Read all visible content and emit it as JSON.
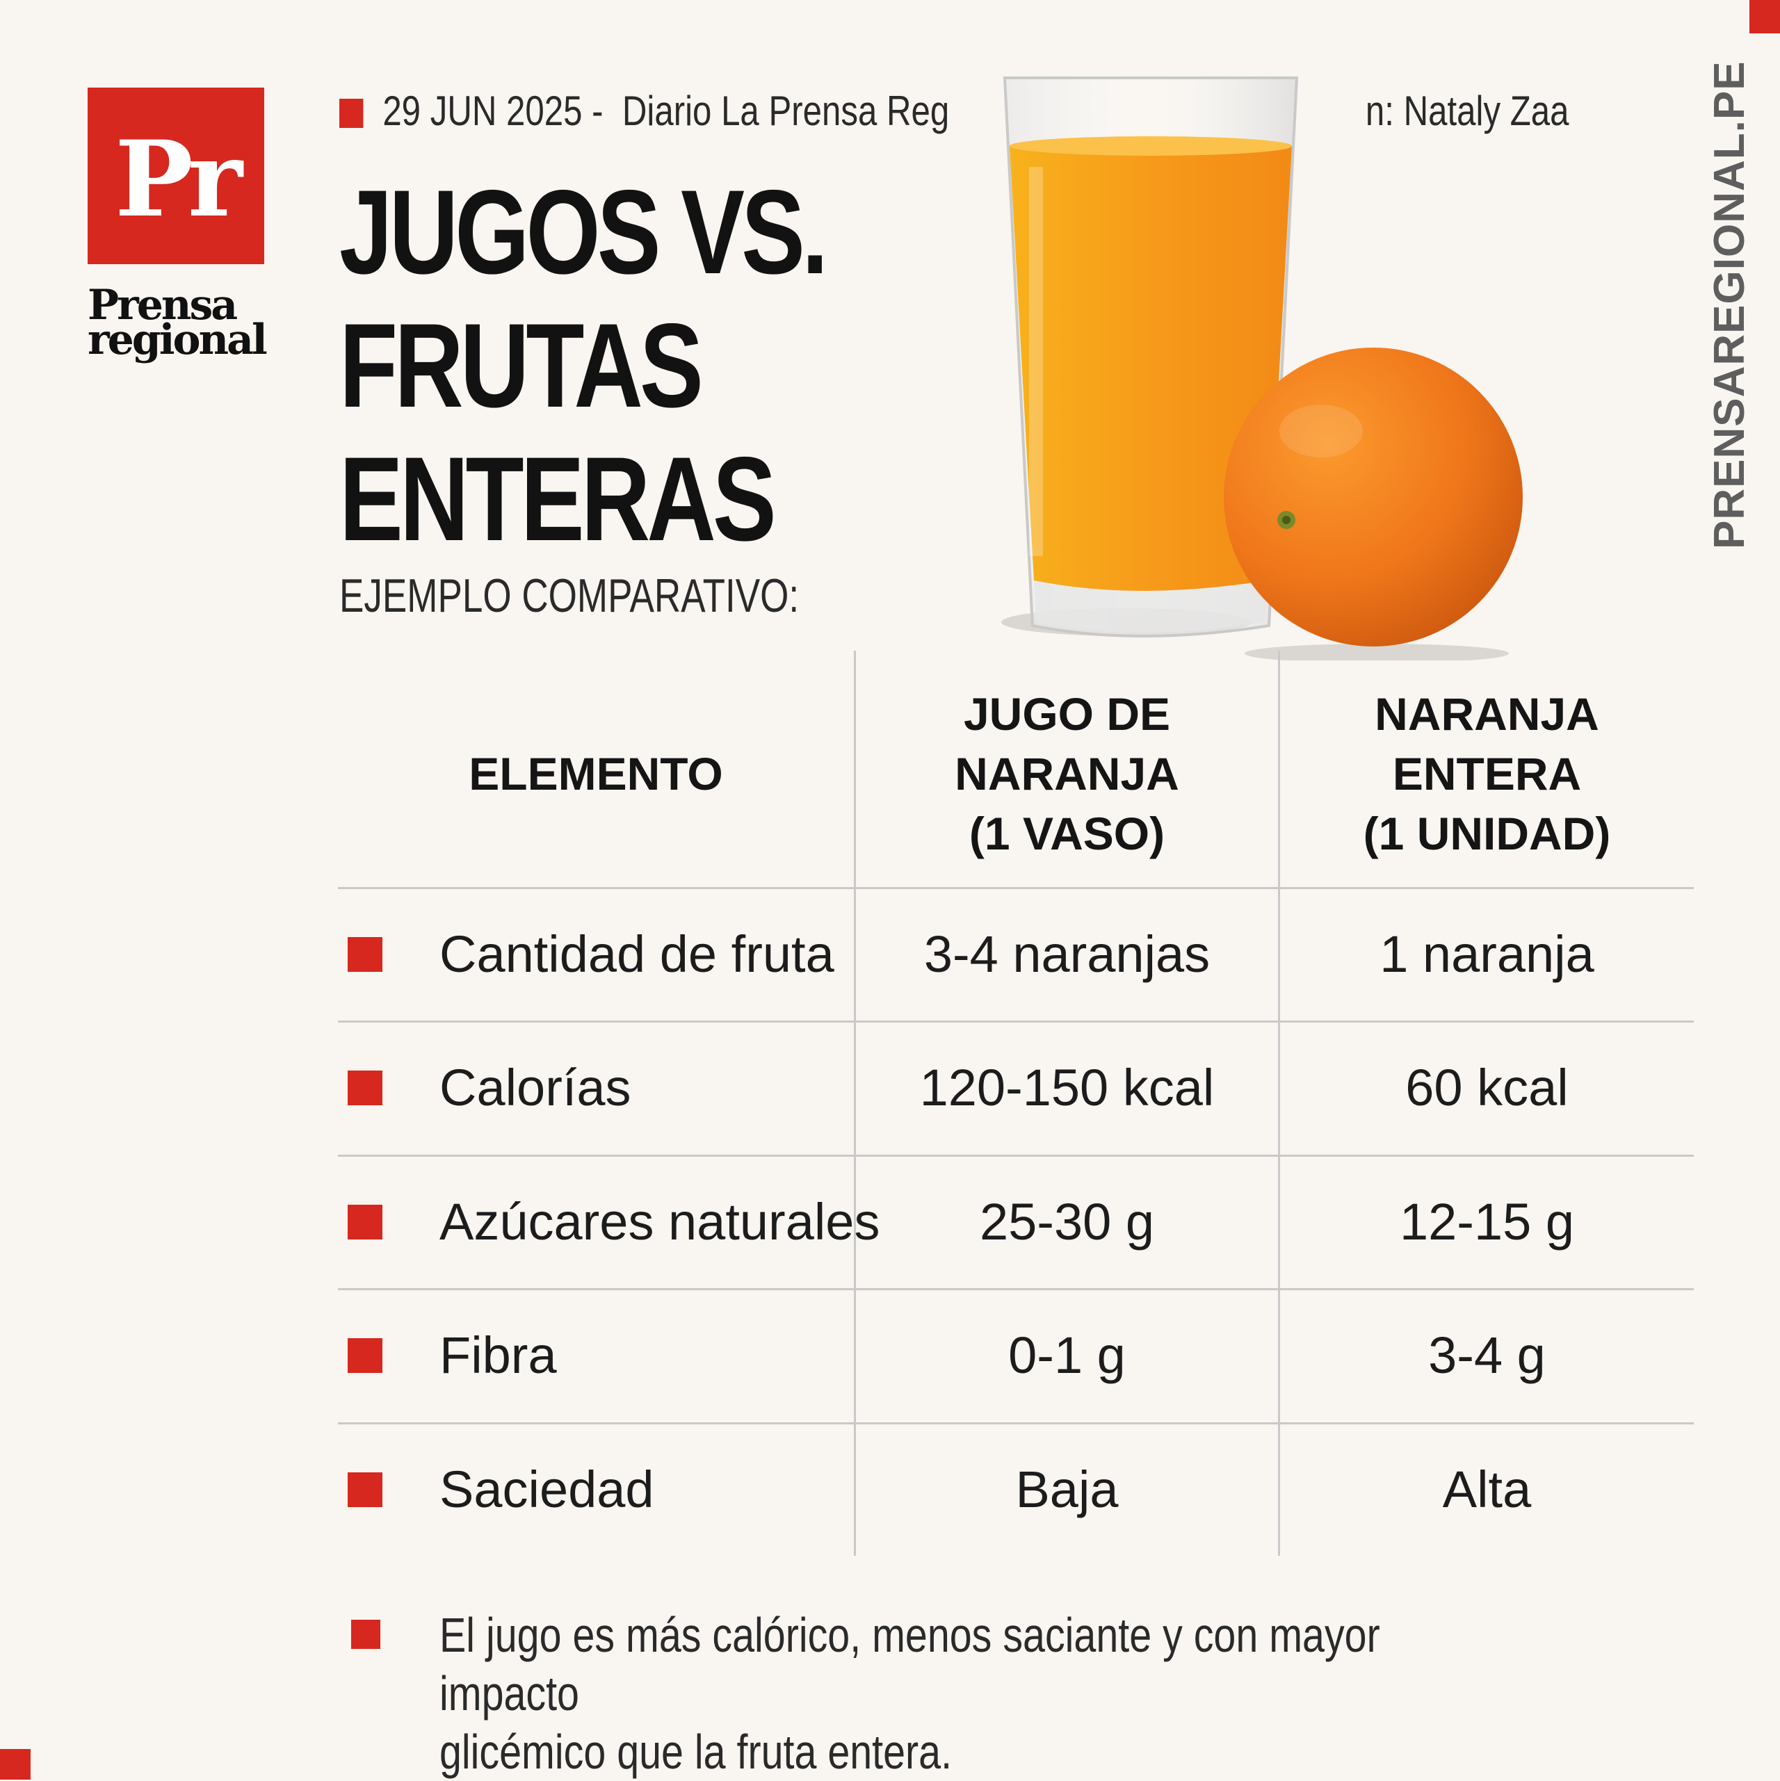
{
  "brand": {
    "logo_letters": "Pr",
    "logo_word_line1": "Prensa",
    "logo_word_line2": "regional",
    "side_url": "PRENSAREGIONAL.PE",
    "accent_color": "#d6281f"
  },
  "meta": {
    "date": "29 JUN 2025 -",
    "source": "Diario La Prensa Reg",
    "author": "n: Nataly Zaa"
  },
  "title": {
    "line1": "JUGOS VS.",
    "line2": "FRUTAS",
    "line3": "ENTERAS"
  },
  "subtitle": "EJEMPLO COMPARATIVO:",
  "table": {
    "headers": {
      "col1": "ELEMENTO",
      "col2_line1": "JUGO DE",
      "col2_line2": "NARANJA",
      "col2_line3": "(1 VASO)",
      "col3_line1": "NARANJA",
      "col3_line2": "ENTERA",
      "col3_line3": "(1 UNIDAD)"
    },
    "rows": [
      {
        "label": "Cantidad de fruta",
        "jugo": "3-4 naranjas",
        "naranja": "1 naranja"
      },
      {
        "label": "Calorías",
        "jugo": "120-150 kcal",
        "naranja": "60 kcal"
      },
      {
        "label": "Azúcares naturales",
        "jugo": "25-30 g",
        "naranja": "12-15 g"
      },
      {
        "label": "Fibra",
        "jugo": "0-1 g",
        "naranja": "3-4 g"
      },
      {
        "label": "Saciedad",
        "jugo": "Baja",
        "naranja": "Alta"
      }
    ]
  },
  "note": {
    "line1": "El jugo es más calórico, menos saciante y con mayor impacto",
    "line2": "glicémico que la fruta entera."
  }
}
